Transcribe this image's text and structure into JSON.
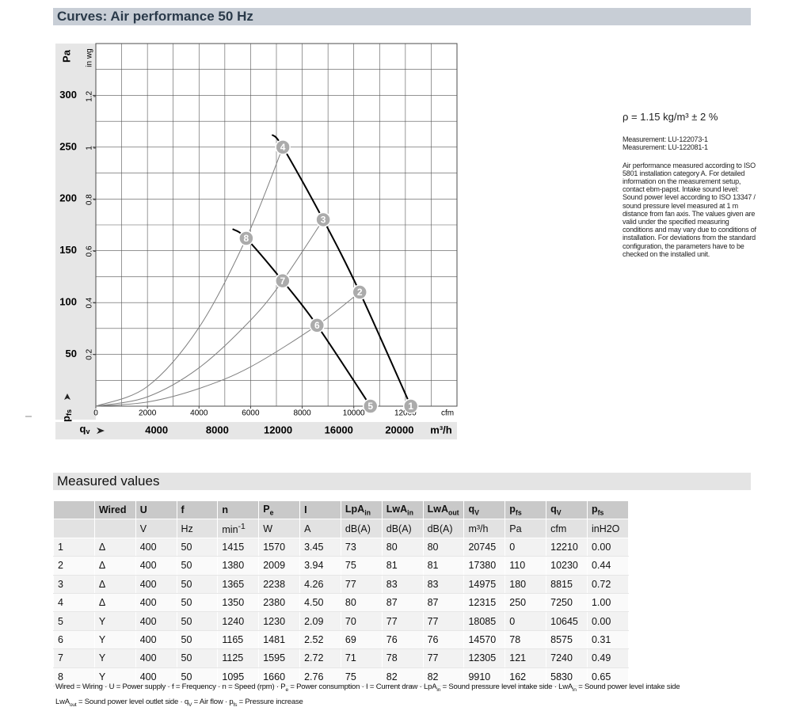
{
  "header": {
    "title": "Curves: Air performance 50 Hz"
  },
  "chart_data": {
    "type": "line",
    "ylabel": "Pa",
    "y2label": "in wg",
    "xlabel": "cfm",
    "x2label": "m³/h",
    "y_quantity": {
      "text": "p",
      "sub": "fs"
    },
    "x_quantity": {
      "text": "q",
      "sub": "v"
    },
    "xlim": [
      0,
      14000
    ],
    "xticks": [
      0,
      2000,
      4000,
      6000,
      8000,
      10000,
      12000
    ],
    "x2lim": [
      0,
      23786
    ],
    "x2ticks": [
      4000,
      8000,
      12000,
      16000,
      20000
    ],
    "ylim": [
      0,
      350
    ],
    "yticks": [
      50,
      100,
      150,
      200,
      250,
      300
    ],
    "y2lim": [
      0,
      1.405
    ],
    "y2ticks": [
      0.2,
      0.4,
      0.6,
      0.8,
      1,
      1.2
    ],
    "grid": true,
    "xgrid_step": 1000,
    "ygrid_step": 25,
    "series": [
      {
        "color": "#000000",
        "x": [
          6830,
          7250,
          8815,
          10230,
          12210
        ],
        "values": [
          262,
          250,
          180,
          110,
          0
        ]
      },
      {
        "color": "#000000",
        "x": [
          5300,
          5830,
          7240,
          8575,
          10645
        ],
        "values": [
          171,
          162,
          121,
          78,
          0
        ]
      },
      {
        "color": "#808080",
        "x": [
          0,
          2000,
          4000,
          5830,
          7250
        ],
        "values": [
          0,
          19,
          76,
          162,
          250
        ]
      },
      {
        "color": "#808080",
        "x": [
          0,
          2000,
          4000,
          6000,
          7240,
          8815
        ],
        "values": [
          0,
          9,
          37,
          83,
          121,
          180
        ]
      },
      {
        "color": "#808080",
        "x": [
          0,
          2000,
          4000,
          6000,
          8575,
          10230
        ],
        "values": [
          0,
          4,
          17,
          38,
          78,
          110
        ]
      }
    ],
    "points": [
      {
        "label": "1",
        "x": 12210,
        "y": 0
      },
      {
        "label": "2",
        "x": 10230,
        "y": 110
      },
      {
        "label": "3",
        "x": 8815,
        "y": 180
      },
      {
        "label": "4",
        "x": 7250,
        "y": 250
      },
      {
        "label": "5",
        "x": 10645,
        "y": 0
      },
      {
        "label": "6",
        "x": 8575,
        "y": 78
      },
      {
        "label": "7",
        "x": 7240,
        "y": 121
      },
      {
        "label": "8",
        "x": 5830,
        "y": 162
      }
    ]
  },
  "notes": {
    "density": "ρ = 1.15 kg/m³ ± 2 %",
    "measurements": [
      "Measurement: LU-122073-1",
      "Measurement: LU-122081-1"
    ],
    "description": "Air performance measured according to ISO 5801 installation category A. For detailed information on the measurement setup, contact ebm-papst. Intake sound level: Sound power level according to ISO 13347 / sound pressure level measured at 1 m distance from fan axis. The values given are valid under the specified measuring conditions and may vary due to conditions of installation. For deviations from the standard configuration, the parameters have to be checked on the installed unit."
  },
  "measured": {
    "title": "Measured values",
    "table": {
      "header": [
        null,
        "Wired",
        "U",
        "f",
        "n",
        {
          "text": "P",
          "sub": "e"
        },
        "I",
        {
          "text": "LpA",
          "sub": "in"
        },
        {
          "text": "LwA",
          "sub": "in"
        },
        {
          "text": "LwA",
          "sub": "out"
        },
        {
          "text": "q",
          "sub": "V"
        },
        {
          "text": "p",
          "sub": "fs"
        },
        {
          "text": "q",
          "sub": "V"
        },
        {
          "text": "p",
          "sub": "fs"
        }
      ],
      "units": [
        null,
        null,
        "V",
        "Hz",
        {
          "text": "min",
          "sup": "-1"
        },
        "W",
        "A",
        "dB(A)",
        "dB(A)",
        "dB(A)",
        "m³/h",
        "Pa",
        "cfm",
        "inH2O"
      ],
      "rows": [
        [
          "1",
          "Δ",
          "400",
          "50",
          "1415",
          "1570",
          "3.45",
          "73",
          "80",
          "80",
          "20745",
          "0",
          "12210",
          "0.00"
        ],
        [
          "2",
          "Δ",
          "400",
          "50",
          "1380",
          "2009",
          "3.94",
          "75",
          "81",
          "81",
          "17380",
          "110",
          "10230",
          "0.44"
        ],
        [
          "3",
          "Δ",
          "400",
          "50",
          "1365",
          "2238",
          "4.26",
          "77",
          "83",
          "83",
          "14975",
          "180",
          "8815",
          "0.72"
        ],
        [
          "4",
          "Δ",
          "400",
          "50",
          "1350",
          "2380",
          "4.50",
          "80",
          "87",
          "87",
          "12315",
          "250",
          "7250",
          "1.00"
        ],
        [
          "5",
          "Y",
          "400",
          "50",
          "1240",
          "1230",
          "2.09",
          "70",
          "77",
          "77",
          "18085",
          "0",
          "10645",
          "0.00"
        ],
        [
          "6",
          "Y",
          "400",
          "50",
          "1165",
          "1481",
          "2.52",
          "69",
          "76",
          "76",
          "14570",
          "78",
          "8575",
          "0.31"
        ],
        [
          "7",
          "Y",
          "400",
          "50",
          "1125",
          "1595",
          "2.72",
          "71",
          "78",
          "77",
          "12305",
          "121",
          "7240",
          "0.49"
        ],
        [
          "8",
          "Y",
          "400",
          "50",
          "1095",
          "1660",
          "2.76",
          "75",
          "82",
          "82",
          "9910",
          "162",
          "5830",
          "0.65"
        ]
      ]
    },
    "footnote": [
      [
        "Wired = Wiring · U = Power supply · f = Frequency · n = Speed (rpm) · P",
        {
          "sub": "e"
        },
        " = Power consumption · I = Current draw · LpA",
        {
          "sub": "in"
        },
        " = Sound pressure level intake side · LwA",
        {
          "sub": "in"
        },
        " = Sound power level intake side"
      ],
      [
        "LwA",
        {
          "sub": "out"
        },
        " = Sound power level outlet side · q",
        {
          "sub": "V"
        },
        " = Air flow · p",
        {
          "sub": "fs"
        },
        " = Pressure increase"
      ]
    ]
  }
}
